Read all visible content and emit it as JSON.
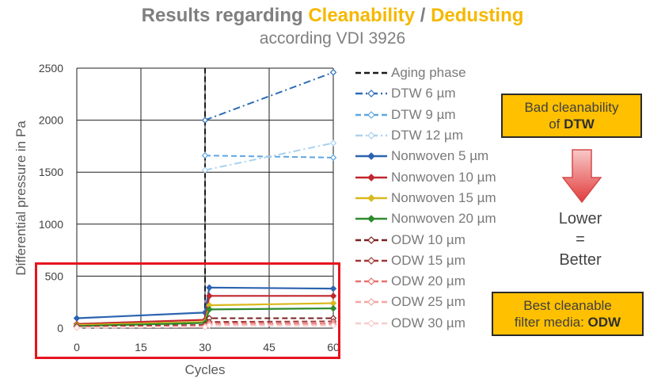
{
  "header": {
    "title_part1": "Results regarding ",
    "title_part2": "Cleanability",
    "title_sep": " / ",
    "title_part3": "Dedusting",
    "subtitle": "according VDI 3926"
  },
  "callouts": {
    "bad_line1": "Bad cleanability",
    "bad_prefix": "of ",
    "bad_bold": "DTW",
    "lower": "Lower",
    "equals": "=",
    "better": "Better",
    "best_line1": "Best cleanable",
    "best_prefix": "filter media: ",
    "best_bold": "ODW"
  },
  "colors": {
    "accent": "#ffc000",
    "highlight_box": "#e6141e",
    "arrow": "#e84a4a"
  },
  "chart_data": {
    "type": "line",
    "xlabel": "Cycles",
    "ylabel": "Differential pressure in Pa",
    "xlim": [
      0,
      60
    ],
    "ylim": [
      0,
      2500
    ],
    "xticks": [
      0,
      15,
      30,
      45,
      60
    ],
    "yticks": [
      0,
      500,
      1000,
      1500,
      2000,
      2500
    ],
    "grid": true,
    "legend_position": "right",
    "series": [
      {
        "name": "Aging phase",
        "color": "#1a1a1a",
        "dash": "dash",
        "marker": "none",
        "points": [
          [
            30,
            20
          ],
          [
            30,
            2500
          ]
        ]
      },
      {
        "name": "DTW 6 µm",
        "color": "#2e6db4",
        "dash": "dashdot",
        "marker": "diamond-open",
        "points": [
          [
            30,
            2000
          ],
          [
            60,
            2460
          ]
        ]
      },
      {
        "name": "DTW 9 µm",
        "color": "#5fa6e0",
        "dash": "dash",
        "marker": "diamond-open",
        "points": [
          [
            30,
            1660
          ],
          [
            60,
            1640
          ]
        ]
      },
      {
        "name": "DTW 12 µm",
        "color": "#a9d1ef",
        "dash": "dashdot",
        "marker": "diamond-open",
        "points": [
          [
            30,
            1520
          ],
          [
            60,
            1780
          ]
        ]
      },
      {
        "name": "Nonwoven 5 µm",
        "color": "#2c63b0",
        "dash": "solid",
        "marker": "diamond",
        "points": [
          [
            0,
            95
          ],
          [
            30,
            150
          ],
          [
            31,
            390
          ],
          [
            60,
            380
          ]
        ]
      },
      {
        "name": "Nonwoven 10 µm",
        "color": "#c0272d",
        "dash": "solid",
        "marker": "diamond",
        "points": [
          [
            0,
            40
          ],
          [
            30,
            80
          ],
          [
            31,
            310
          ],
          [
            60,
            310
          ]
        ]
      },
      {
        "name": "Nonwoven 15 µm",
        "color": "#d9b81e",
        "dash": "solid",
        "marker": "diamond",
        "points": [
          [
            0,
            30
          ],
          [
            30,
            60
          ],
          [
            31,
            220
          ],
          [
            60,
            240
          ]
        ]
      },
      {
        "name": "Nonwoven 20 µm",
        "color": "#2e8b2e",
        "dash": "solid",
        "marker": "diamond",
        "points": [
          [
            0,
            20
          ],
          [
            30,
            50
          ],
          [
            31,
            180
          ],
          [
            60,
            190
          ]
        ]
      },
      {
        "name": "ODW 10 µm",
        "color": "#7a1f1f",
        "dash": "dash",
        "marker": "diamond-open",
        "points": [
          [
            0,
            15
          ],
          [
            30,
            30
          ],
          [
            31,
            95
          ],
          [
            60,
            95
          ]
        ]
      },
      {
        "name": "ODW 15 µm",
        "color": "#a23535",
        "dash": "dash",
        "marker": "diamond-open",
        "points": [
          [
            0,
            10
          ],
          [
            30,
            25
          ],
          [
            31,
            60
          ],
          [
            60,
            65
          ]
        ]
      },
      {
        "name": "ODW 20 µm",
        "color": "#e8706e",
        "dash": "dash",
        "marker": "diamond-open",
        "points": [
          [
            0,
            8
          ],
          [
            30,
            20
          ],
          [
            31,
            45
          ],
          [
            60,
            45
          ]
        ]
      },
      {
        "name": "ODW 25 µm",
        "color": "#f2a6a4",
        "dash": "dash",
        "marker": "diamond-open",
        "points": [
          [
            0,
            6
          ],
          [
            30,
            15
          ],
          [
            31,
            35
          ],
          [
            60,
            35
          ]
        ]
      },
      {
        "name": "ODW 30 µm",
        "color": "#f7cccb",
        "dash": "dash",
        "marker": "diamond-open",
        "points": [
          [
            0,
            4
          ],
          [
            30,
            10
          ],
          [
            31,
            25
          ],
          [
            60,
            25
          ]
        ]
      }
    ]
  }
}
